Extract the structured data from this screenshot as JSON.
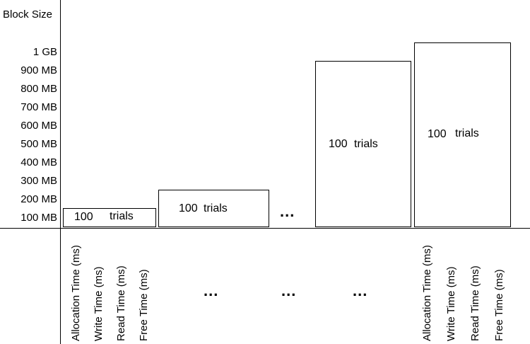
{
  "y_axis": {
    "title": "Block Size",
    "ticks": [
      "1 GB",
      "900 MB",
      "800 MB",
      "700 MB",
      "600 MB",
      "500 MB",
      "400 MB",
      "300 MB",
      "200 MB",
      "100 MB"
    ]
  },
  "blocks": [
    {
      "trial_count": "100",
      "trial_word": "trials",
      "size_mb": 100
    },
    {
      "trial_count": "100",
      "trial_word": "trials",
      "size_mb": 200
    },
    {
      "trial_count": "100",
      "trial_word": "trials",
      "size_mb": 900
    },
    {
      "trial_count": "100",
      "trial_word": "trials",
      "size_mb": 1000
    }
  ],
  "ellipsis": "...",
  "metrics_left": [
    "Allocation Time (ms)",
    "Write Time (ms)",
    "Read Time (ms)",
    "Free Time (ms)"
  ],
  "metrics_right": [
    "Allocation Time (ms)",
    "Write Time (ms)",
    "Read Time (ms)",
    "Free Time (ms)"
  ]
}
